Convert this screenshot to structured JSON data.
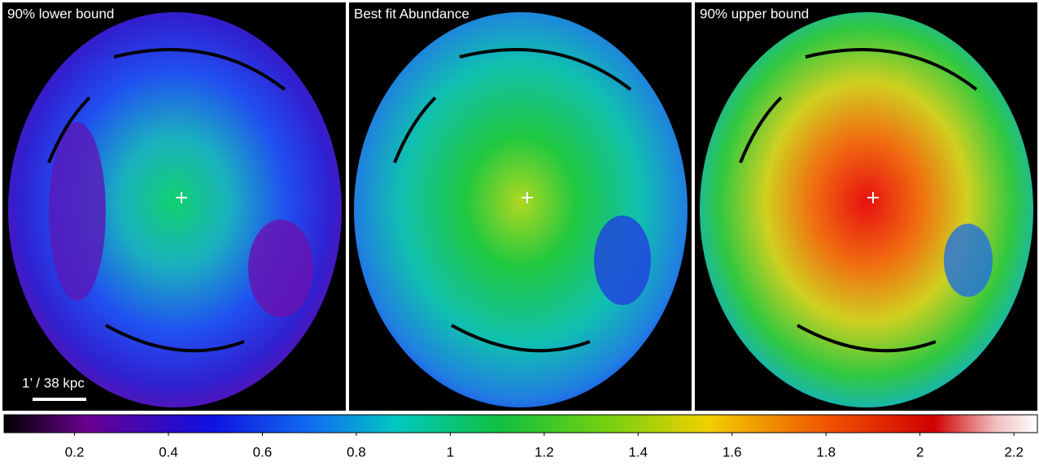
{
  "panels": [
    {
      "title": "90% lower bound"
    },
    {
      "title": "Best fit Abundance"
    },
    {
      "title": "90% upper bound"
    }
  ],
  "scale_bar": {
    "label": "1’ / 38 kpc"
  },
  "colorbar": {
    "lim": [
      0.05,
      2.25
    ],
    "ticks": [
      0.2,
      0.4,
      0.6,
      0.8,
      1,
      1.2,
      1.4,
      1.6,
      1.8,
      2,
      2.2
    ]
  }
}
